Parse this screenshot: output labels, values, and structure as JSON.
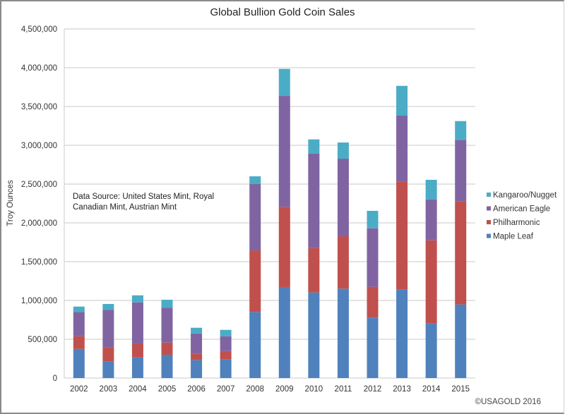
{
  "chart_data": {
    "type": "bar",
    "stacked": true,
    "title": "Global Bullion Gold Coin Sales",
    "xlabel": "",
    "ylabel": "Troy Ounces",
    "ylim": [
      0,
      4500000
    ],
    "yticks": [
      0,
      500000,
      1000000,
      1500000,
      2000000,
      2500000,
      3000000,
      3500000,
      4000000,
      4500000
    ],
    "ytick_labels": [
      "0",
      "500,000",
      "1,000,000",
      "1,500,000",
      "2,000,000",
      "2,500,000",
      "3,000,000",
      "3,500,000",
      "4,000,000",
      "4,500,000"
    ],
    "grid": true,
    "legend_position": "right",
    "categories": [
      "2002",
      "2003",
      "2004",
      "2005",
      "2006",
      "2007",
      "2008",
      "2009",
      "2010",
      "2011",
      "2012",
      "2013",
      "2014",
      "2015"
    ],
    "series": [
      {
        "name": "Maple Leaf",
        "color": "#4f81bd",
        "values": [
          375000,
          215000,
          266000,
          300000,
          233000,
          239000,
          852000,
          1173000,
          1103000,
          1152000,
          779000,
          1139000,
          706000,
          948000
        ]
      },
      {
        "name": "Philharmonic",
        "color": "#c0504d",
        "values": [
          164000,
          179000,
          179000,
          157000,
          79000,
          109000,
          793000,
          1033000,
          573000,
          675000,
          397000,
          1394000,
          1069000,
          1327000
        ]
      },
      {
        "name": "American Eagle",
        "color": "#8064a2",
        "values": [
          312000,
          484000,
          530000,
          448000,
          263000,
          191000,
          855000,
          1430000,
          1218000,
          1000000,
          754000,
          849000,
          528000,
          795000
        ]
      },
      {
        "name": "Kangaroo/Nugget",
        "color": "#4bacc6",
        "values": [
          70000,
          77000,
          91000,
          104000,
          73000,
          82000,
          100000,
          349000,
          182000,
          209000,
          225000,
          384000,
          252000,
          242000
        ]
      }
    ],
    "annotations": [
      "Data Source: United States Mint, Royal",
      "Canadian Mint, Austrian Mint"
    ],
    "credit": "©USAGOLD 2016"
  }
}
